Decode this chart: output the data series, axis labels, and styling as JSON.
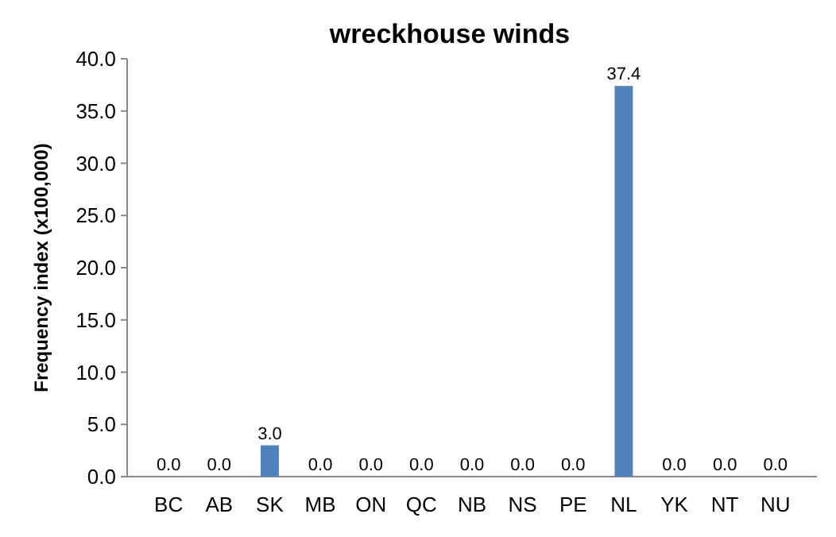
{
  "chart_data": {
    "type": "bar",
    "title": "wreckhouse winds",
    "ylabel": "Frequency index (x100,000)",
    "categories": [
      "BC",
      "AB",
      "SK",
      "MB",
      "ON",
      "QC",
      "NB",
      "NS",
      "PE",
      "NL",
      "YK",
      "NT",
      "NU"
    ],
    "values": [
      0,
      0,
      3.0,
      0,
      0,
      0,
      0,
      0,
      0,
      37.4,
      0,
      0,
      0
    ],
    "value_labels": [
      "0.0",
      "0.0",
      "3.0",
      "0.0",
      "0.0",
      "0.0",
      "0.0",
      "0.0",
      "0.0",
      "37.4",
      "0.0",
      "0.0",
      "0.0"
    ],
    "color": "#4f81bd",
    "ylim": [
      0,
      40
    ],
    "yticks": [
      {
        "value": 0,
        "label": "0.0"
      },
      {
        "value": 5,
        "label": "5.0"
      },
      {
        "value": 10,
        "label": "10.0"
      },
      {
        "value": 15,
        "label": "15.0"
      },
      {
        "value": 20,
        "label": "20.0"
      },
      {
        "value": 25,
        "label": "25.0"
      },
      {
        "value": 30,
        "label": "30.0"
      },
      {
        "value": 35,
        "label": "35.0"
      },
      {
        "value": 40,
        "label": "40.0"
      }
    ],
    "grid": false
  }
}
